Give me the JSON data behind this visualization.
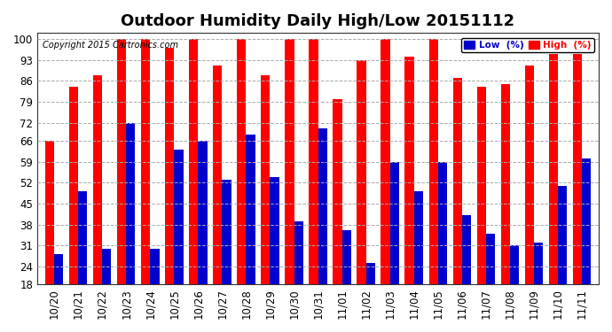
{
  "title": "Outdoor Humidity Daily High/Low 20151112",
  "copyright": "Copyright 2015 Cartronics.com",
  "categories": [
    "10/20",
    "10/21",
    "10/22",
    "10/23",
    "10/24",
    "10/25",
    "10/26",
    "10/27",
    "10/28",
    "10/29",
    "10/30",
    "10/31",
    "11/01",
    "11/02",
    "11/03",
    "11/04",
    "11/05",
    "11/06",
    "11/07",
    "11/08",
    "11/09",
    "11/10",
    "11/11"
  ],
  "high_values": [
    66,
    84,
    88,
    100,
    100,
    97,
    100,
    91,
    100,
    88,
    100,
    100,
    80,
    93,
    100,
    94,
    100,
    87,
    84,
    85,
    91,
    95,
    95
  ],
  "low_values": [
    28,
    49,
    30,
    72,
    30,
    63,
    66,
    53,
    68,
    54,
    39,
    70,
    36,
    25,
    59,
    49,
    59,
    41,
    35,
    31,
    32,
    51,
    60
  ],
  "high_color": "#ff0000",
  "low_color": "#0000cc",
  "bg_color": "#ffffff",
  "grid_color": "#aaaaaa",
  "ylim": [
    18,
    102
  ],
  "yticks": [
    18,
    24,
    31,
    38,
    45,
    52,
    59,
    66,
    72,
    79,
    86,
    93,
    100
  ],
  "bar_width": 0.38,
  "title_fontsize": 13,
  "tick_fontsize": 8.5,
  "legend_low_label": "Low  (%)",
  "legend_high_label": "High  (%)"
}
